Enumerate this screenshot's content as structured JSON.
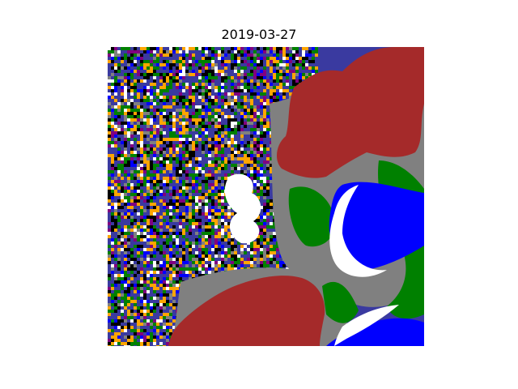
{
  "figure": {
    "title": "2019-03-27"
  },
  "palette": {
    "background": "#ffffff",
    "water": "#0000ff",
    "urban": "#a52a2a",
    "bare_gray": "#808080",
    "vegetation": "#008000",
    "cropland": "#ffa500",
    "snow_cloud": "#ffffff",
    "shadow": "#000000",
    "wetland": "#800080"
  }
}
